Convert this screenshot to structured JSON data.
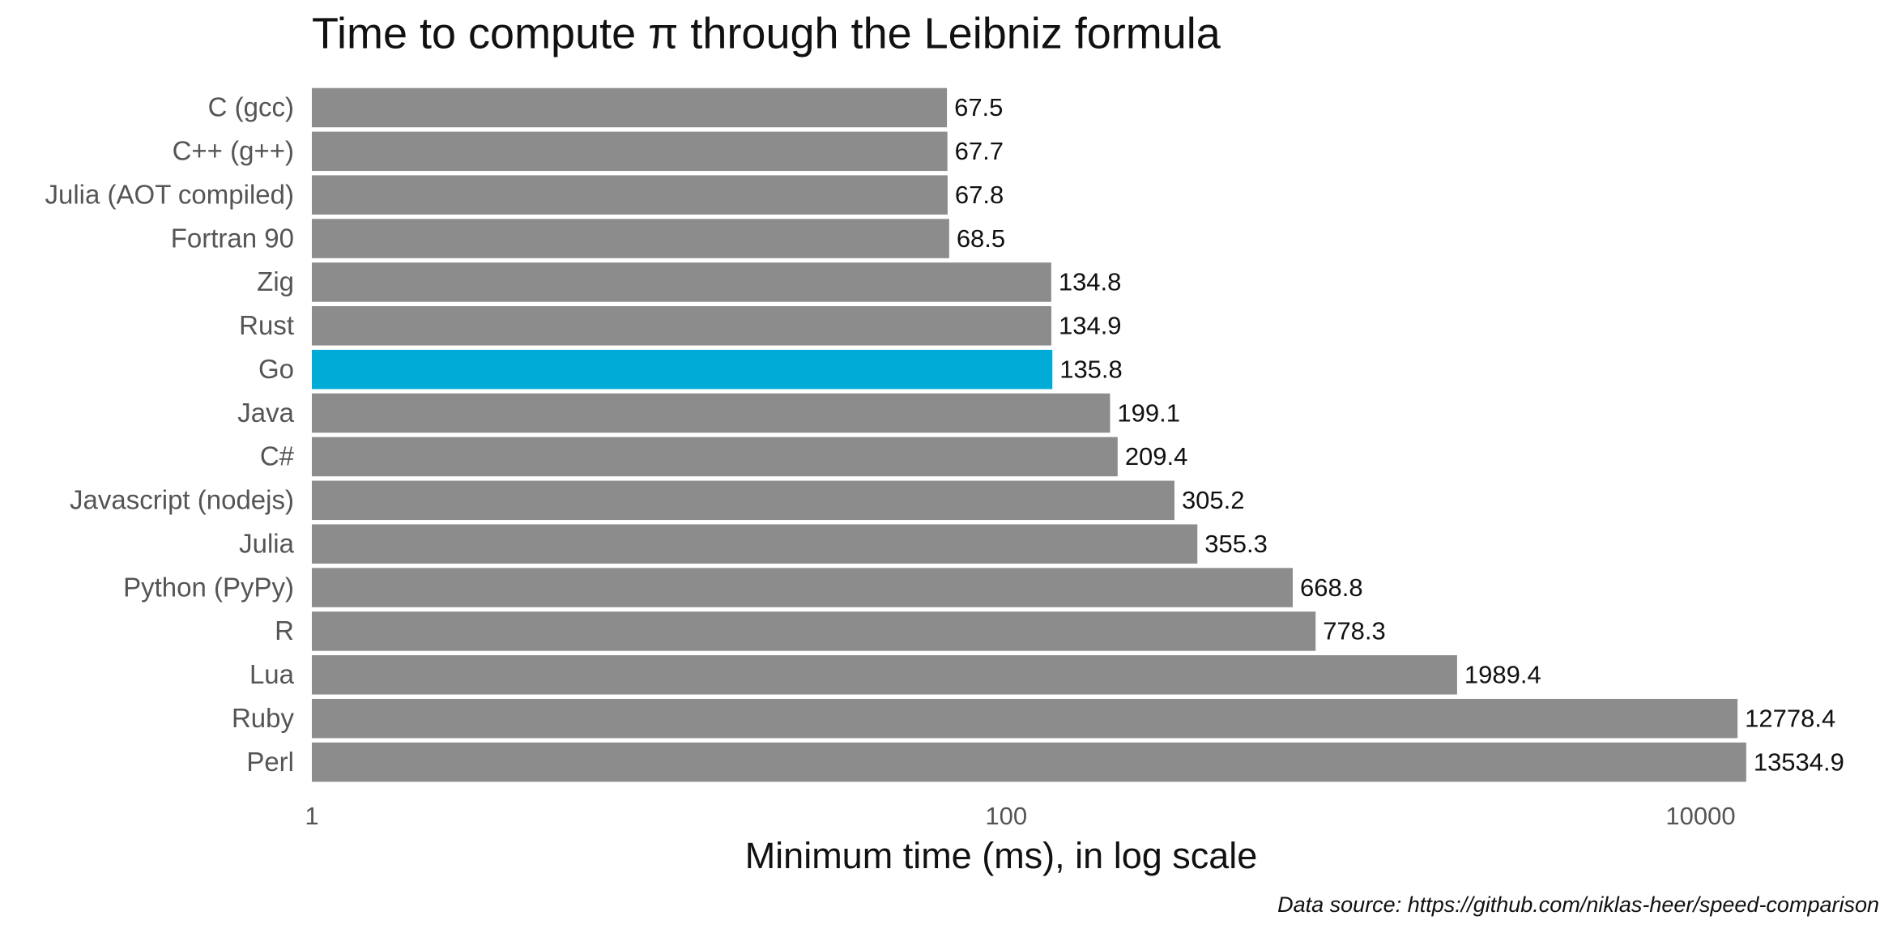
{
  "chart_data": {
    "type": "bar",
    "orientation": "horizontal",
    "log_scale": true,
    "title": "Time to compute π through the Leibniz formula",
    "x_label": "Minimum time (ms), in log scale",
    "caption": "Data source: https://github.com/niklas-heer/speed-comparison",
    "categories": [
      "C (gcc)",
      "C++ (g++)",
      "Julia (AOT compiled)",
      "Fortran 90",
      "Zig",
      "Rust",
      "Go",
      "Java",
      "C#",
      "Javascript (nodejs)",
      "Julia",
      "Python (PyPy)",
      "R",
      "Lua",
      "Ruby",
      "Perl"
    ],
    "values": [
      67.5,
      67.7,
      67.8,
      68.5,
      134.8,
      134.9,
      135.8,
      199.1,
      209.4,
      305.2,
      355.3,
      668.8,
      778.3,
      1989.4,
      12778.4,
      13534.9
    ],
    "colors": [
      "#8c8c8c",
      "#8c8c8c",
      "#8c8c8c",
      "#8c8c8c",
      "#8c8c8c",
      "#8c8c8c",
      "#00acd7",
      "#8c8c8c",
      "#8c8c8c",
      "#8c8c8c",
      "#8c8c8c",
      "#8c8c8c",
      "#8c8c8c",
      "#8c8c8c",
      "#8c8c8c",
      "#8c8c8c"
    ],
    "xlim": [
      1,
      30000
    ],
    "xticks": [
      1,
      100,
      10000
    ],
    "grid": false
  }
}
